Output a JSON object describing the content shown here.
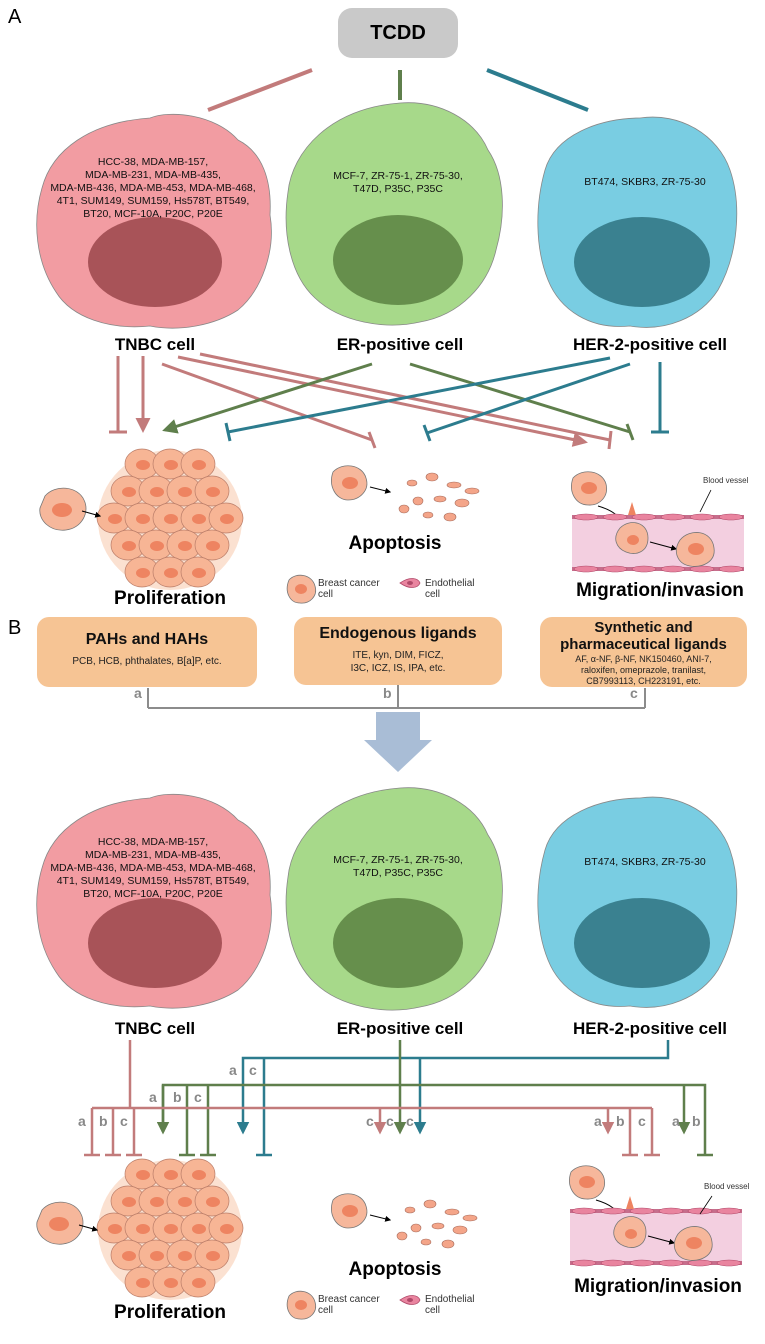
{
  "panels": {
    "a": "A",
    "b": "B"
  },
  "tcdd": "TCDD",
  "cells": {
    "tnbc": {
      "label": "TNBC cell",
      "lines": [
        "HCC-38, MDA-MB-157,",
        "MDA-MB-231, MDA-MB-435,",
        "MDA-MB-436, MDA-MB-453, MDA-MB-468,",
        "4T1, SUM149, SUM159, Hs578T, BT549,",
        "BT20, MCF-10A, P20C, P20E"
      ],
      "color": "#f29ca2",
      "nucleus": "#a85358"
    },
    "er": {
      "label": "ER-positive cell",
      "lines": [
        "MCF-7, ZR-75-1, ZR-75-30,",
        "T47D, P35C, P35C"
      ],
      "color": "#a7d98a",
      "nucleus": "#668f4c"
    },
    "her2": {
      "label": "HER-2-positive cell",
      "lines": [
        "BT474, SKBR3, ZR-75-30"
      ],
      "color": "#79cde2",
      "nucleus": "#3a8190"
    }
  },
  "processes": {
    "proliferation": "Proliferation",
    "apoptosis": "Apoptosis",
    "migration": "Migration/invasion"
  },
  "legend": {
    "breast_cancer": [
      "Breast cancer",
      "cell"
    ],
    "endothelial": [
      "Endothelial",
      "cell"
    ]
  },
  "blood_vessel": "Blood vessel",
  "ligands": [
    {
      "letter": "a",
      "title": [
        "PAHs and HAHs"
      ],
      "items": [
        "PCB, HCB, phthalates, B[a]P, etc."
      ]
    },
    {
      "letter": "b",
      "title": [
        "Endogenous ligands"
      ],
      "items": [
        "ITE, kyn, DIM, FICZ,",
        "I3C, ICZ, IS, IPA, etc."
      ]
    },
    {
      "letter": "c",
      "title": [
        "Synthetic and",
        "pharmaceutical ligands"
      ],
      "items": [
        "AF, α-NF, β-NF, NK150460, ANI-7,",
        "raloxifen, omeprazole, tranilast,",
        "CB7993113, CH223191, etc."
      ]
    }
  ],
  "branch_letters": {
    "tnbc_to_proliferation": [
      "a",
      "b",
      "c"
    ],
    "er_to_proliferation": [
      "a",
      "b",
      "c"
    ],
    "her2_to_proliferation": [
      "a",
      "c"
    ],
    "to_apoptosis": [
      "c",
      "c",
      "c"
    ],
    "tnbc_to_migration": [
      "a",
      "b",
      "c"
    ],
    "er_to_migration": [
      "a",
      "b"
    ]
  },
  "colors": {
    "tnbc_line": "#c27b7b",
    "er_line": "#5f7f4c",
    "her2_line": "#2c7c8e",
    "ligand_line": "#8c8c8c",
    "down_arrow": "#a9bdd6"
  }
}
